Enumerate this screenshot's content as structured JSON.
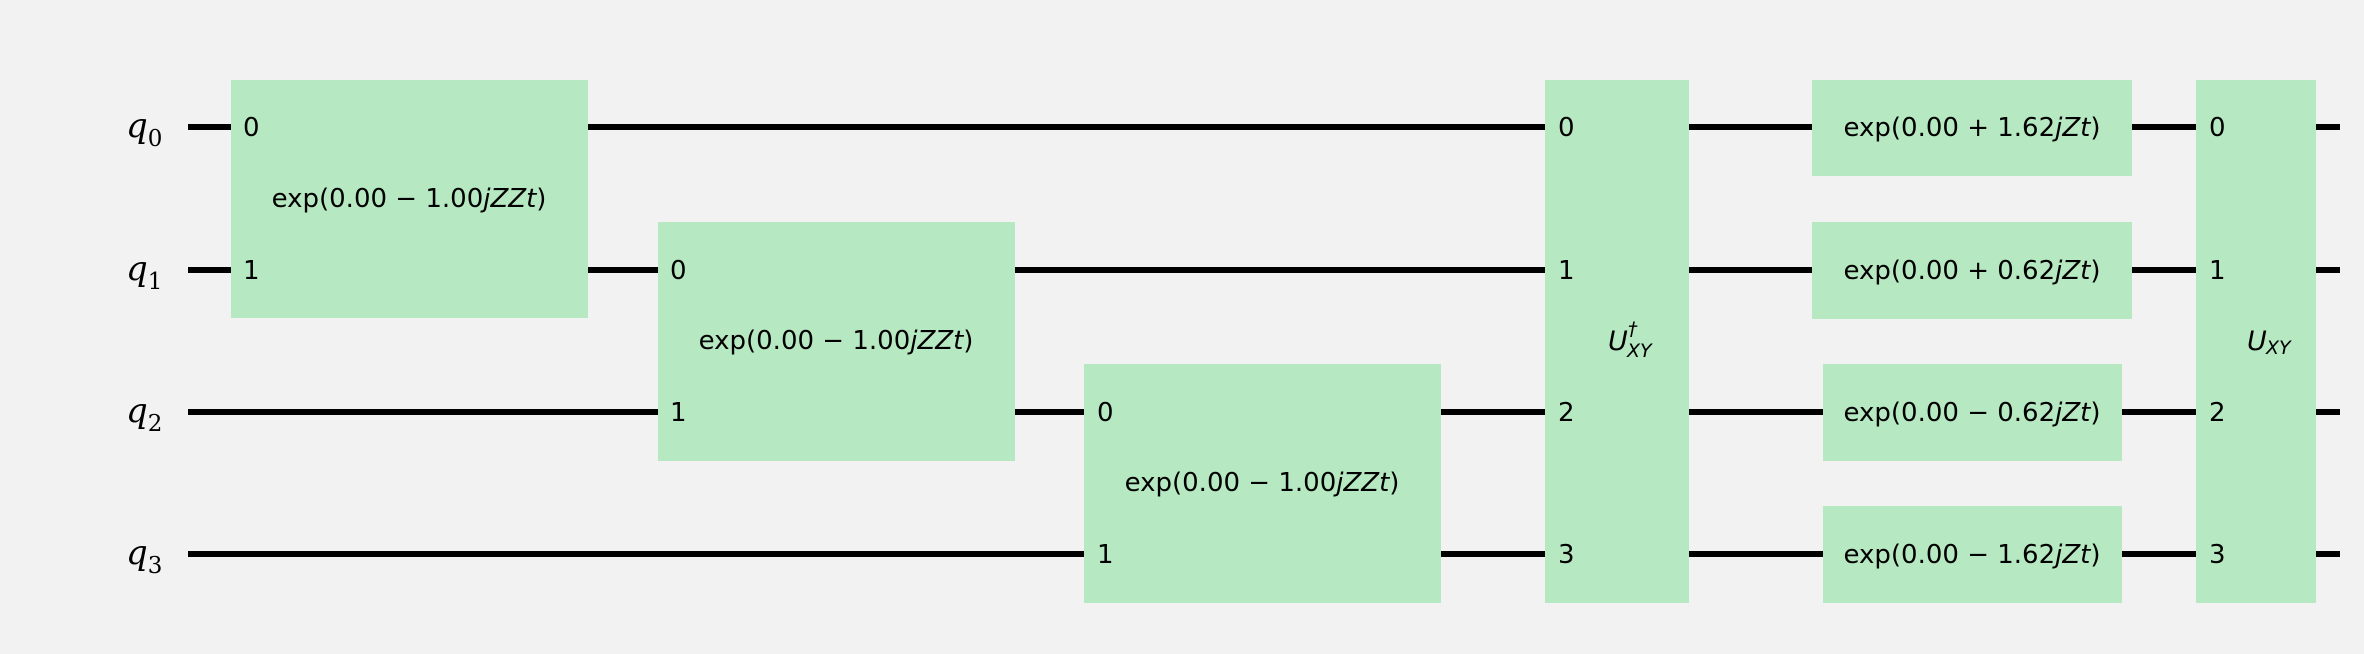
{
  "qubits": [
    {
      "label": "q",
      "sub": "0"
    },
    {
      "label": "q",
      "sub": "1"
    },
    {
      "label": "q",
      "sub": "2"
    },
    {
      "label": "q",
      "sub": "3"
    }
  ],
  "gates": {
    "zz_0_1": {
      "pre": "exp(0.00 − 1.00",
      "var": "jZZt",
      "post": ")",
      "pins": [
        "0",
        "1"
      ]
    },
    "zz_1_2": {
      "pre": "exp(0.00 − 1.00",
      "var": "jZZt",
      "post": ")",
      "pins": [
        "0",
        "1"
      ]
    },
    "zz_2_3": {
      "pre": "exp(0.00 − 1.00",
      "var": "jZZt",
      "post": ")",
      "pins": [
        "0",
        "1"
      ]
    },
    "u_dagger": {
      "base": "U",
      "sup": "†",
      "sub": "XY",
      "pins": [
        "0",
        "1",
        "2",
        "3"
      ]
    },
    "z_q0": {
      "pre": "exp(0.00 + 1.62",
      "var": "jZt",
      "post": ")"
    },
    "z_q1": {
      "pre": "exp(0.00 + 0.62",
      "var": "jZt",
      "post": ")"
    },
    "z_q2": {
      "pre": "exp(0.00 − 0.62",
      "var": "jZt",
      "post": ")"
    },
    "z_q3": {
      "pre": "exp(0.00 − 1.62",
      "var": "jZt",
      "post": ")"
    },
    "u": {
      "base": "U",
      "sub": "XY",
      "pins": [
        "0",
        "1",
        "2",
        "3"
      ]
    }
  },
  "colors": {
    "gate_fill": "#b6e9c1",
    "wire": "#000000",
    "background": "#f2f2f2"
  }
}
